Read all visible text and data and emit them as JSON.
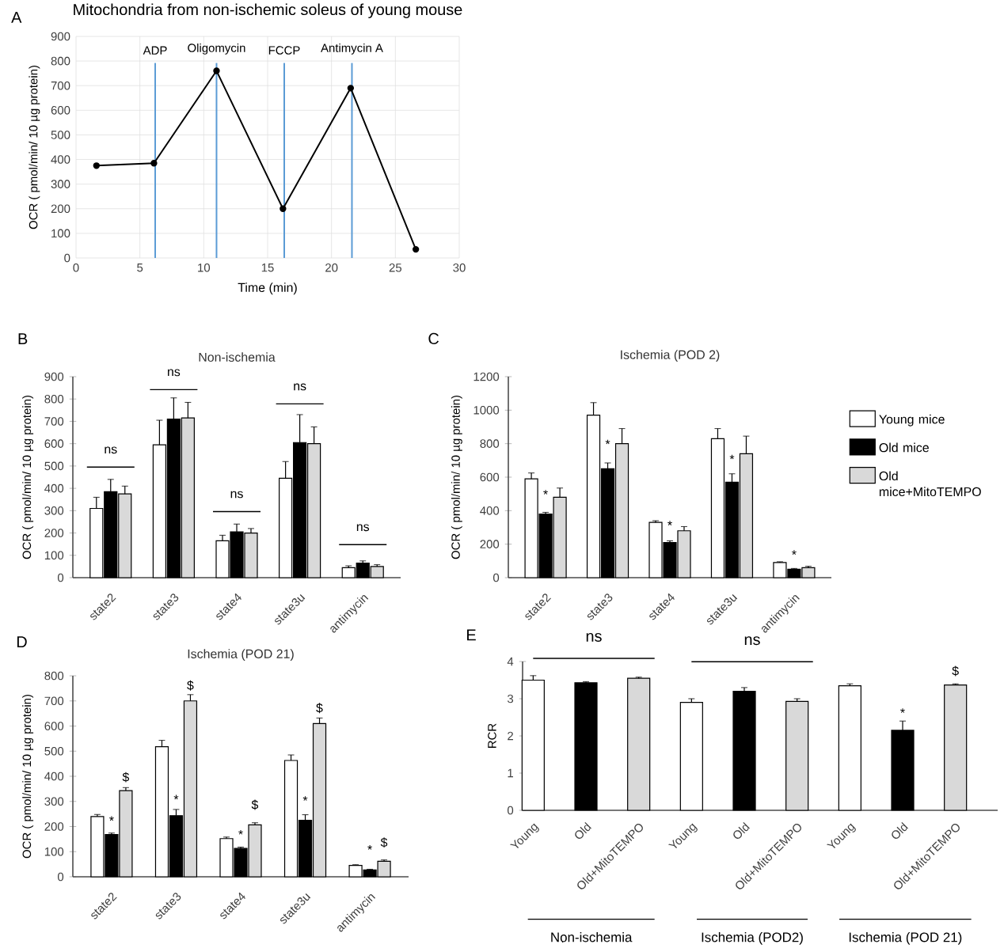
{
  "chart_data": [
    {
      "type": "line",
      "title": "Mitochondria from non-ischemic soleus of young mouse",
      "xlabel": "Time (min)",
      "ylabel": "OCR ( pmol/min/ 10 µg protein)",
      "x": [
        1.6,
        6.1,
        11.0,
        16.2,
        21.5,
        26.6
      ],
      "series": [
        {
          "color": "#000000",
          "values": [
            375,
            385,
            760,
            200,
            690,
            35
          ]
        }
      ],
      "xlim": [
        0,
        30
      ],
      "xticks": [
        0,
        5,
        10,
        15,
        20,
        25,
        30
      ],
      "ylim": [
        0,
        900
      ],
      "yticks": [
        0,
        100,
        200,
        300,
        400,
        500,
        600,
        700,
        800,
        900
      ],
      "grid": true,
      "marker": "circle",
      "line_style": "solid",
      "ref_lines": [
        {
          "axis": "x",
          "value": 6.2,
          "label": "ADP",
          "color": "#5b9bd5"
        },
        {
          "axis": "x",
          "value": 11.0,
          "label": "Oligomycin",
          "color": "#5b9bd5"
        },
        {
          "axis": "x",
          "value": 16.3,
          "label": "FCCP",
          "color": "#5b9bd5"
        },
        {
          "axis": "x",
          "value": 21.6,
          "label": "Antimycin A",
          "color": "#5b9bd5"
        }
      ],
      "annotations": [
        "A"
      ]
    },
    {
      "type": "bar",
      "title": "Non-ischemia",
      "ylabel": "OCR ( pmol/min/ 10 µg protein)",
      "categories": [
        "state2",
        "state3",
        "state4",
        "state3u",
        "antimycin"
      ],
      "series": [
        {
          "color": "#ffffff",
          "values": [
            310,
            595,
            165,
            445,
            45
          ],
          "errors": [
            50,
            110,
            25,
            75,
            8
          ]
        },
        {
          "color": "#000000",
          "values": [
            385,
            710,
            205,
            605,
            65
          ],
          "errors": [
            55,
            95,
            35,
            125,
            10
          ]
        },
        {
          "color": "#d9d9d9",
          "values": [
            375,
            715,
            200,
            600,
            50
          ],
          "errors": [
            35,
            70,
            20,
            75,
            8
          ]
        }
      ],
      "ylim": [
        0,
        900
      ],
      "yticks": [
        0,
        100,
        200,
        300,
        400,
        500,
        600,
        700,
        800,
        900
      ],
      "annotations": [
        "B",
        "ns",
        "ns",
        "ns",
        "ns",
        "ns"
      ]
    },
    {
      "type": "bar",
      "title": "Ischemia (POD 2)",
      "ylabel": "OCR ( pmol/min/ 10 µg protein)",
      "categories": [
        "state2",
        "state3",
        "state4",
        "state3u",
        "antimycin"
      ],
      "series": [
        {
          "name": "Young mice",
          "color": "#ffffff",
          "values": [
            590,
            970,
            330,
            830,
            90
          ],
          "errors": [
            35,
            75,
            10,
            60,
            5
          ]
        },
        {
          "name": "Old mice",
          "color": "#000000",
          "values": [
            380,
            650,
            210,
            570,
            50
          ],
          "errors": [
            10,
            35,
            10,
            50,
            5
          ]
        },
        {
          "name": "Old mice+MitoTEMPO",
          "color": "#d9d9d9",
          "values": [
            480,
            800,
            280,
            740,
            60
          ],
          "errors": [
            55,
            90,
            25,
            105,
            8
          ]
        }
      ],
      "ylim": [
        0,
        1200
      ],
      "yticks": [
        0,
        200,
        400,
        600,
        800,
        1000,
        1200
      ],
      "legend": "right",
      "annotations": [
        "C",
        "*",
        "*",
        "*",
        "*",
        "*"
      ]
    },
    {
      "type": "bar",
      "title": "Ischemia (POD 21)",
      "ylabel": "OCR ( pmol/min/ 10 µg protein)",
      "categories": [
        "state2",
        "state3",
        "state4",
        "state3u",
        "antimycin"
      ],
      "series": [
        {
          "color": "#ffffff",
          "values": [
            240,
            518,
            152,
            463,
            45
          ],
          "errors": [
            8,
            25,
            6,
            22,
            3
          ]
        },
        {
          "color": "#000000",
          "values": [
            168,
            243,
            113,
            225,
            27
          ],
          "errors": [
            6,
            25,
            5,
            22,
            3
          ]
        },
        {
          "color": "#d9d9d9",
          "values": [
            343,
            700,
            207,
            610,
            62
          ],
          "errors": [
            12,
            25,
            8,
            22,
            5
          ]
        }
      ],
      "ylim": [
        0,
        800
      ],
      "yticks": [
        0,
        100,
        200,
        300,
        400,
        500,
        600,
        700,
        800
      ],
      "annotations": [
        "D",
        "*",
        "$",
        "*",
        "$",
        "*",
        "$",
        "*",
        "$",
        "*",
        "$"
      ]
    },
    {
      "type": "bar",
      "ylabel": "RCR",
      "categories": [
        "Young",
        "Old",
        "Old+MitoTEMPO",
        "Young",
        "Old",
        "Old+MitoTEMPO",
        "Young",
        "Old",
        "Old+MitoTEMPO"
      ],
      "values": [
        3.5,
        3.43,
        3.55,
        2.9,
        3.2,
        2.93,
        3.35,
        2.15,
        3.37
      ],
      "errors": [
        0.12,
        0.03,
        0.03,
        0.1,
        0.1,
        0.07,
        0.05,
        0.25,
        0.03
      ],
      "colors": [
        "#ffffff",
        "#000000",
        "#d9d9d9",
        "#ffffff",
        "#000000",
        "#d9d9d9",
        "#ffffff",
        "#000000",
        "#d9d9d9"
      ],
      "ylim": [
        0,
        4
      ],
      "yticks": [
        0,
        1,
        2,
        3,
        4
      ],
      "annotations": [
        "ns",
        "ns",
        {
          "text": "*",
          "y": 2.5
        },
        {
          "text": "$",
          "y": 3.6
        },
        "Non-ischemia",
        "Ischemia (POD2)",
        "Ischemia (POD 21)",
        "E"
      ]
    }
  ]
}
